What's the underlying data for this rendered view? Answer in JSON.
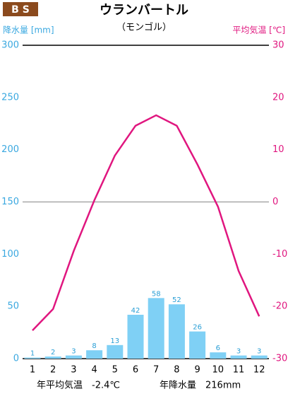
{
  "chart_data": {
    "type": "climate",
    "badge": "B S",
    "title": "ウランバートル",
    "subtitle": "（モンゴル）",
    "y_label": "降水量 [mm]",
    "y2_label": "平均気温 [℃]",
    "categories": [
      "1",
      "2",
      "3",
      "4",
      "5",
      "6",
      "7",
      "8",
      "9",
      "10",
      "11",
      "12"
    ],
    "series": [
      {
        "name": "降水量",
        "type": "bar",
        "color": "#7fd0f5",
        "label_color": "#2a9fd6",
        "values": [
          1,
          2,
          3,
          8,
          13,
          42,
          58,
          52,
          26,
          6,
          3,
          3
        ]
      },
      {
        "name": "平均気温",
        "type": "line",
        "axis": "y2",
        "color": "#e0167f",
        "values": [
          -24.6,
          -20.5,
          -9.4,
          0.3,
          8.9,
          14.6,
          16.6,
          14.6,
          7.2,
          -0.9,
          -13.2,
          -21.9
        ]
      }
    ],
    "ylim": [
      0,
      300
    ],
    "yticks": [
      0,
      50,
      100,
      150,
      200,
      250,
      300
    ],
    "y2lim": [
      -30,
      30
    ],
    "y2ticks": [
      -30,
      -20,
      -10,
      0,
      10,
      20,
      30
    ],
    "grid_lines": [
      0,
      150,
      300
    ],
    "y_color": "#3aa8e0",
    "y2_color": "#e0167f",
    "annotations": [
      "年平均気温　-2.4℃",
      "年降水量　216mm"
    ]
  }
}
